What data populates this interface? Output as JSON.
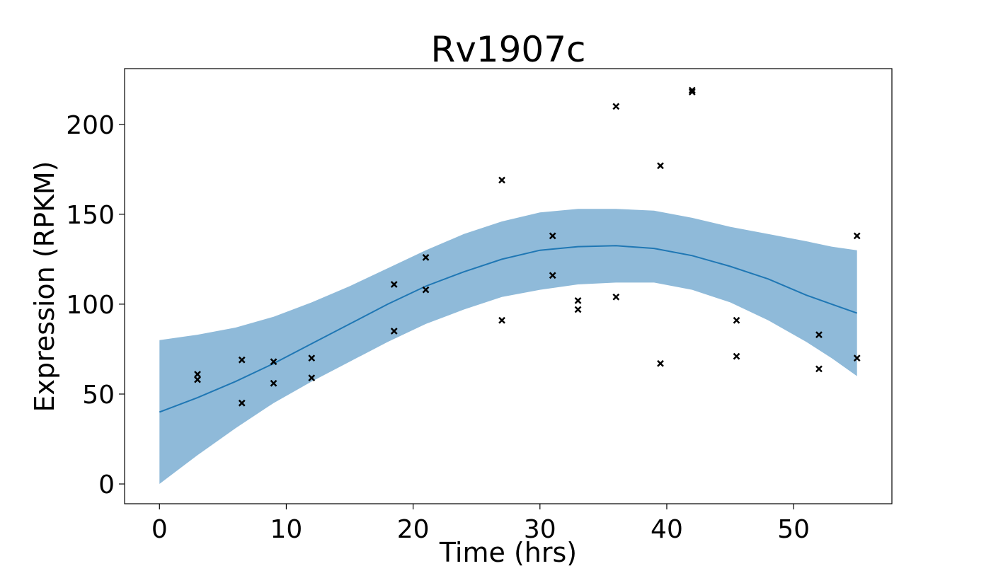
{
  "chart_data": {
    "type": "scatter",
    "title": "Rv1907c",
    "xlabel": "Time (hrs)",
    "ylabel": "Expression (RPKM)",
    "xlim": [
      -2.75,
      57.75
    ],
    "ylim": [
      -11,
      231
    ],
    "xticks": [
      0,
      10,
      20,
      30,
      40,
      50
    ],
    "yticks": [
      0,
      50,
      100,
      150,
      200
    ],
    "grid": false,
    "legend": "none",
    "colors": {
      "mean": "#1f77b4",
      "band": "#8fbad9",
      "points": "#000000"
    },
    "mean_curve": {
      "x": [
        0,
        3,
        6,
        9,
        12,
        15,
        18,
        21,
        24,
        27,
        30,
        33,
        36,
        39,
        42,
        45,
        48,
        51,
        53,
        55
      ],
      "y": [
        40,
        48,
        57,
        67,
        78,
        89,
        100,
        110,
        118,
        125,
        130,
        132,
        132.5,
        131,
        127,
        121,
        114,
        105,
        100,
        95
      ]
    },
    "confidence_band": {
      "x": [
        0,
        3,
        6,
        9,
        12,
        15,
        18,
        21,
        24,
        27,
        30,
        33,
        36,
        39,
        42,
        45,
        48,
        51,
        53,
        55
      ],
      "upper": [
        80,
        83,
        87,
        93,
        101,
        110,
        120,
        130,
        139,
        146,
        151,
        153,
        153,
        152,
        148,
        143,
        139,
        135,
        132,
        130
      ],
      "lower": [
        0,
        16,
        31,
        45,
        57,
        68,
        79,
        89,
        97,
        104,
        108,
        111,
        112,
        112,
        108,
        101,
        91,
        79,
        70,
        60
      ]
    },
    "points": {
      "x": [
        3,
        3,
        6.5,
        6.5,
        9,
        9,
        12,
        12,
        18.5,
        18.5,
        21,
        21,
        27,
        27,
        31,
        31,
        33,
        33,
        36,
        36,
        39.5,
        39.5,
        42,
        42,
        45.5,
        45.5,
        52,
        52,
        55,
        55
      ],
      "y": [
        61,
        58,
        69,
        45,
        68,
        56,
        70,
        59,
        111,
        85,
        126,
        108,
        169,
        91,
        138,
        116,
        102,
        97,
        210,
        104,
        177,
        67,
        218,
        219,
        91,
        71,
        83,
        64,
        138,
        70
      ]
    }
  }
}
